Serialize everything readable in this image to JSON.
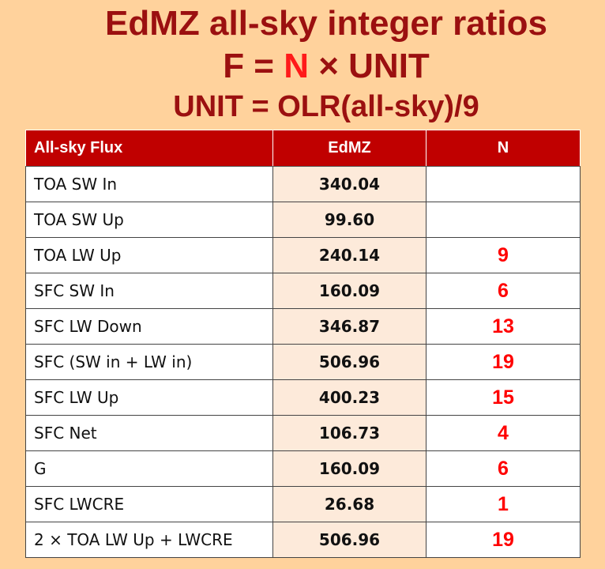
{
  "title": {
    "line1": "EdMZ all-sky integer ratios",
    "line2_left": "F = ",
    "line2_n": "N",
    "line2_right": " × UNIT",
    "line3": "UNIT = OLR(all-sky)/9"
  },
  "table": {
    "headers": [
      "All-sky Flux",
      "EdMZ",
      "N"
    ],
    "rows": [
      {
        "name": "TOA SW In",
        "edmz": "340.04",
        "n": ""
      },
      {
        "name": "TOA SW Up",
        "edmz": "99.60",
        "n": ""
      },
      {
        "name": "TOA LW Up",
        "edmz": "240.14",
        "n": "9"
      },
      {
        "name": "SFC SW In",
        "edmz": "160.09",
        "n": "6"
      },
      {
        "name": "SFC LW Down",
        "edmz": "346.87",
        "n": "13"
      },
      {
        "name": "SFC (SW in + LW in)",
        "edmz": "506.96",
        "n": "19"
      },
      {
        "name": "SFC LW Up",
        "edmz": "400.23",
        "n": "15"
      },
      {
        "name": "SFC Net",
        "edmz": "106.73",
        "n": "4"
      },
      {
        "name": "G",
        "edmz": "160.09",
        "n": "6"
      },
      {
        "name": "SFC LWCRE",
        "edmz": "26.68",
        "n": "1"
      },
      {
        "name": "2 × TOA LW Up + LWCRE",
        "edmz": "506.96",
        "n": "19"
      }
    ]
  },
  "colors": {
    "background": "#ffd29c",
    "title": "#9b1010",
    "title_n": "#ff1a1a",
    "header_bg": "#c00000",
    "value_cell_bg": "#fdeada",
    "n_text": "#ff0000"
  }
}
